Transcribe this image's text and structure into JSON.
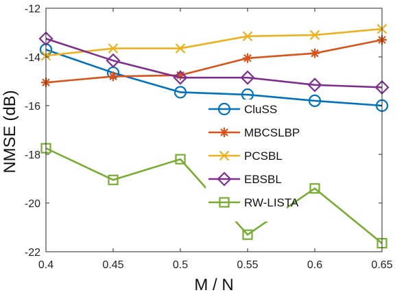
{
  "chart_data": {
    "type": "line",
    "x": [
      0.4,
      0.45,
      0.5,
      0.55,
      0.6,
      0.65
    ],
    "xticks": [
      "0.4",
      "0.45",
      "0.5",
      "0.55",
      "0.6",
      "0.65"
    ],
    "yticks": [
      "-22",
      "-20",
      "-18",
      "-16",
      "-14",
      "-12"
    ],
    "xlabel": "M / N",
    "ylabel": "NMSE (dB)",
    "xlim": [
      0.4,
      0.65
    ],
    "ylim": [
      -22,
      -12
    ],
    "legend_position": "center-right",
    "series": [
      {
        "name": "CluSS",
        "color": "#0072BD",
        "marker": "circle",
        "values": [
          -13.7,
          -14.65,
          -15.45,
          -15.55,
          -15.8,
          -16.0
        ]
      },
      {
        "name": "MBCSLBP",
        "color": "#D95319",
        "marker": "asterisk",
        "values": [
          -15.05,
          -14.8,
          -14.75,
          -14.05,
          -13.85,
          -13.3
        ]
      },
      {
        "name": "PCSBL",
        "color": "#EDB120",
        "marker": "x",
        "values": [
          -13.95,
          -13.65,
          -13.65,
          -13.15,
          -13.1,
          -12.85
        ]
      },
      {
        "name": "EBSBL",
        "color": "#7E2F8E",
        "marker": "diamond",
        "values": [
          -13.25,
          -14.15,
          -14.85,
          -14.85,
          -15.15,
          -15.25
        ]
      },
      {
        "name": "RW-LISTA",
        "color": "#77AC30",
        "marker": "square",
        "values": [
          -17.75,
          -19.05,
          -18.2,
          -21.3,
          -19.4,
          -21.65
        ]
      }
    ]
  }
}
